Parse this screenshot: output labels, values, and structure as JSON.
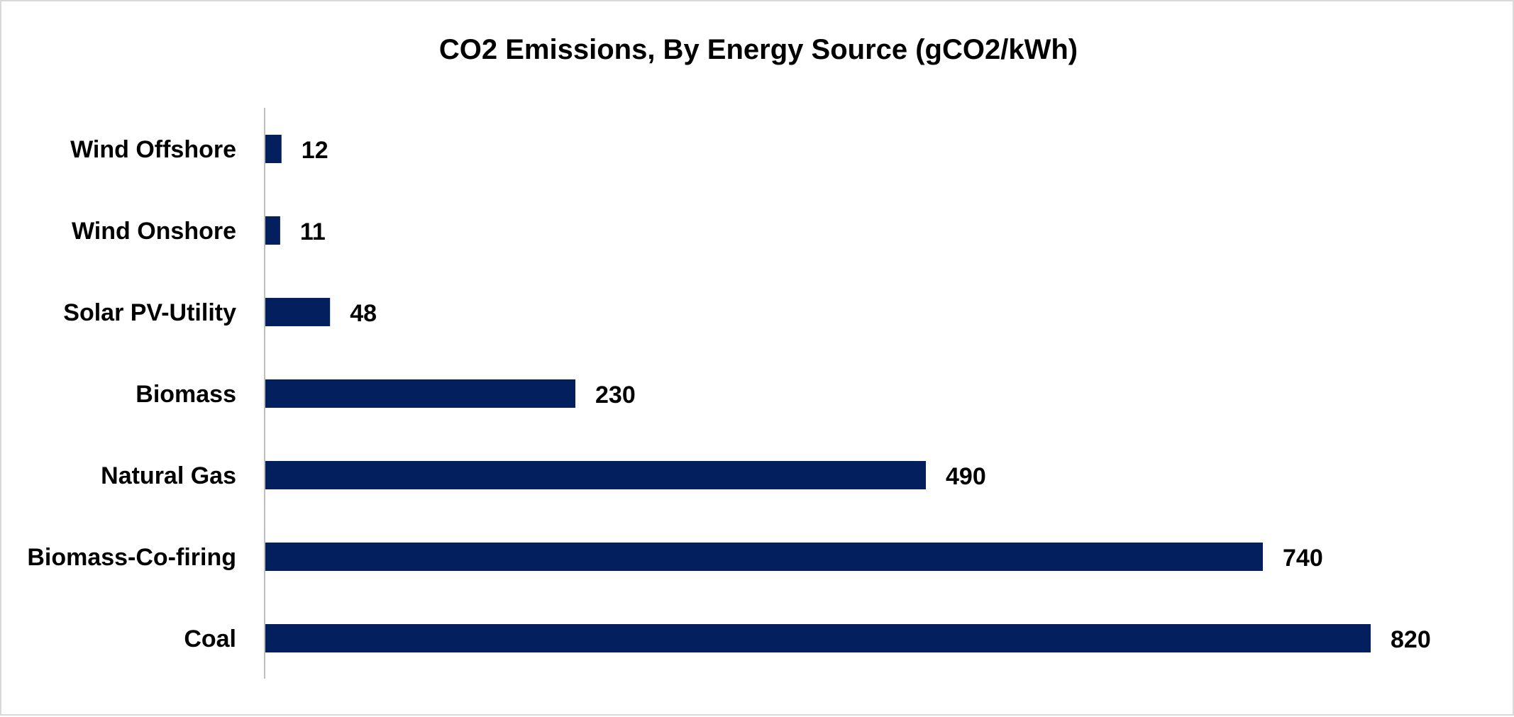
{
  "chart_data": {
    "type": "bar",
    "orientation": "horizontal",
    "title": "CO2 Emissions, By Energy Source (gCO2/kWh)",
    "categories": [
      "Wind Offshore",
      "Wind Onshore",
      "Solar PV-Utility",
      "Biomass",
      "Natural Gas",
      "Biomass-Co-firing",
      "Coal"
    ],
    "values": [
      12,
      11,
      48,
      230,
      490,
      740,
      820
    ],
    "data_labels": [
      "12",
      "11",
      "48",
      "230",
      "490",
      "740",
      "820"
    ],
    "xlim": [
      0,
      820
    ],
    "bar_color": "#031f5e",
    "axis_color": "#bfbfbf",
    "grid": false,
    "legend": "none",
    "xlabel": "",
    "ylabel": ""
  }
}
